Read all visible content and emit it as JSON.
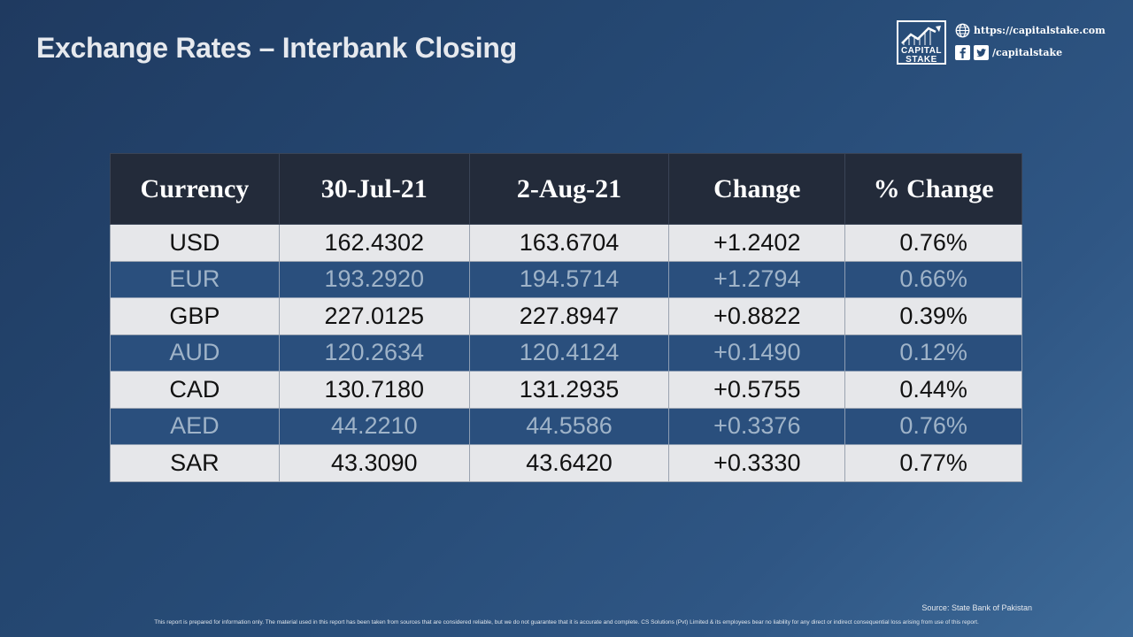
{
  "header": {
    "title": "Exchange Rates – Interbank Closing"
  },
  "brand": {
    "logo_line1": "CAPITAL",
    "logo_line2": "STAKE",
    "website": "https://capitalstake.com",
    "social_handle": "/capitalstake",
    "icons": [
      "globe-icon",
      "facebook-icon",
      "twitter-icon",
      "chart-logo-icon"
    ]
  },
  "table": {
    "headers": [
      "Currency",
      "30-Jul-21",
      "2-Aug-21",
      "Change",
      "% Change"
    ],
    "rows": [
      [
        "USD",
        "162.4302",
        "163.6704",
        "+1.2402",
        "0.76%"
      ],
      [
        "EUR",
        "193.2920",
        "194.5714",
        "+1.2794",
        "0.66%"
      ],
      [
        "GBP",
        "227.0125",
        "227.8947",
        "+0.8822",
        "0.39%"
      ],
      [
        "AUD",
        "120.2634",
        "120.4124",
        "+0.1490",
        "0.12%"
      ],
      [
        "CAD",
        "130.7180",
        "131.2935",
        "+0.5755",
        "0.44%"
      ],
      [
        "AED",
        "44.2210",
        "44.5586",
        "+0.3376",
        "0.76%"
      ],
      [
        "SAR",
        "43.3090",
        "43.6420",
        "+0.3330",
        "0.77%"
      ]
    ]
  },
  "footer": {
    "source": "Source: State Bank of Pakistan",
    "disclaimer": "This report is prepared for information only. The material used in this report has been taken from sources that are considered reliable, but we do not guarantee that it is accurate and complete. CS Solutions (Pvt) Limited & its employees bear no liability for any direct or indirect consequential loss arising from use of this report."
  },
  "colors": {
    "header_bg": "#232b3a",
    "row_light": "#e6e7ea",
    "row_dark": "#2a4f7d",
    "background": "#264a75"
  }
}
